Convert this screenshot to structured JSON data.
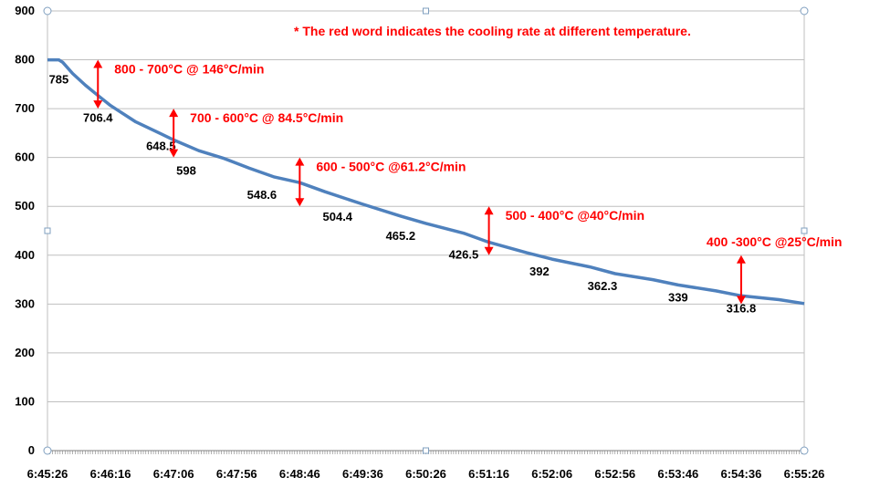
{
  "chart_data": {
    "type": "line",
    "title": "",
    "xlabel": "",
    "ylabel": "",
    "ylim": [
      0,
      900
    ],
    "yticks": [
      0,
      100,
      200,
      300,
      400,
      500,
      600,
      700,
      800,
      900
    ],
    "xlim": [
      "6:45:26",
      "6:55:26"
    ],
    "xticks": [
      "6:45:26",
      "6:46:16",
      "6:47:06",
      "6:47:56",
      "6:48:46",
      "6:49:36",
      "6:50:26",
      "6:51:16",
      "6:52:06",
      "6:52:56",
      "6:53:46",
      "6:54:36",
      "6:55:26"
    ],
    "grid": true,
    "legend": "none",
    "note": "* The red word indicates the cooling rate at different temperature.",
    "series": [
      {
        "color": "#4f81bd",
        "x": [
          "6:45:26",
          "6:45:35",
          "6:45:38",
          "6:45:46",
          "6:45:56",
          "6:46:06",
          "6:46:16",
          "6:46:36",
          "6:46:56",
          "6:47:06",
          "6:47:26",
          "6:47:46",
          "6:48:06",
          "6:48:26",
          "6:48:46",
          "6:49:06",
          "6:49:36",
          "6:50:06",
          "6:50:26",
          "6:50:56",
          "6:51:16",
          "6:51:46",
          "6:52:06",
          "6:52:36",
          "6:52:56",
          "6:53:26",
          "6:53:46",
          "6:54:16",
          "6:54:36",
          "6:55:06",
          "6:55:26"
        ],
        "y": [
          800,
          800,
          795,
          772,
          748,
          727,
          706.4,
          673,
          648.5,
          636,
          614,
          598,
          578,
          560,
          548.6,
          530,
          504.4,
          480,
          465.2,
          445,
          426.5,
          405,
          392,
          376,
          362.3,
          350,
          339,
          327,
          316.8,
          309,
          301
        ]
      }
    ],
    "data_labels": [
      {
        "x": "6:45:35",
        "y": 785,
        "text": "785"
      },
      {
        "x": "6:46:06",
        "y": 706.4,
        "text": "706.4"
      },
      {
        "x": "6:46:56",
        "y": 648.5,
        "text": "648.5"
      },
      {
        "x": "6:47:16",
        "y": 598,
        "text": "598"
      },
      {
        "x": "6:48:16",
        "y": 548.6,
        "text": "548.6"
      },
      {
        "x": "6:49:16",
        "y": 504.4,
        "text": "504.4"
      },
      {
        "x": "6:50:06",
        "y": 465.2,
        "text": "465.2"
      },
      {
        "x": "6:50:56",
        "y": 426.5,
        "text": "426.5"
      },
      {
        "x": "6:51:56",
        "y": 392,
        "text": "392"
      },
      {
        "x": "6:52:46",
        "y": 362.3,
        "text": "362.3"
      },
      {
        "x": "6:53:46",
        "y": 339,
        "text": "339"
      },
      {
        "x": "6:54:36",
        "y": 316.8,
        "text": "316.8"
      }
    ],
    "annotations": [
      {
        "text": "800 - 700°C @ 146°C/min",
        "x": "6:46:06",
        "from": 800,
        "to": 700
      },
      {
        "text": "700 - 600°C @ 84.5°C/min",
        "x": "6:47:06",
        "from": 700,
        "to": 600
      },
      {
        "text": "600 - 500°C @61.2°C/min",
        "x": "6:48:46",
        "from": 600,
        "to": 500
      },
      {
        "text": "500 - 400°C @40°C/min",
        "x": "6:51:16",
        "from": 500,
        "to": 400
      },
      {
        "text": "400 -300°C @25°C/min",
        "x": "6:54:36",
        "from": 400,
        "to": 300
      }
    ]
  }
}
